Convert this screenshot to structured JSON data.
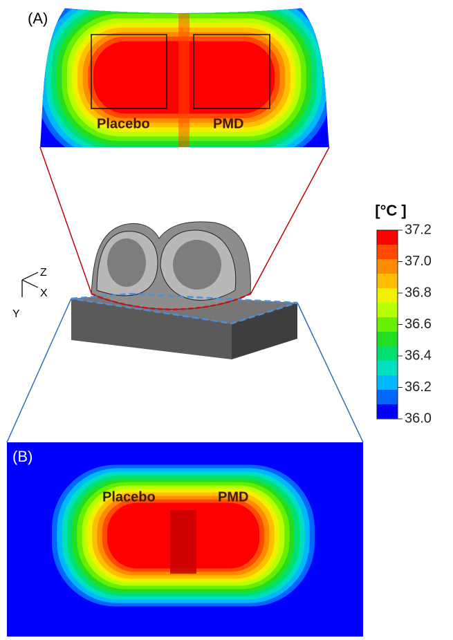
{
  "panel_a": {
    "label": "(A)",
    "left_label": "Placebo",
    "right_label": "PMD"
  },
  "panel_b": {
    "label": "(B)",
    "left_label": "Placebo",
    "right_label": "PMD"
  },
  "axes": {
    "z": "Z",
    "x": "X",
    "y": "Y"
  },
  "colorbar": {
    "title": "[°C ]",
    "lim": [
      36.0,
      37.2
    ],
    "ticks": [
      {
        "value": 36.0,
        "label": "36.0"
      },
      36.2,
      36.4,
      36.6,
      36.8,
      {
        "value": 37.0,
        "label": "37.0"
      },
      37.2
    ],
    "colors": [
      "#ff0000",
      "#ff4a00",
      "#ff8c00",
      "#ffbf00",
      "#f0f000",
      "#b8ff00",
      "#66f000",
      "#22dd22",
      "#00e070",
      "#00e0c0",
      "#00b8ff",
      "#0066ff",
      "#0000ff"
    ]
  }
}
